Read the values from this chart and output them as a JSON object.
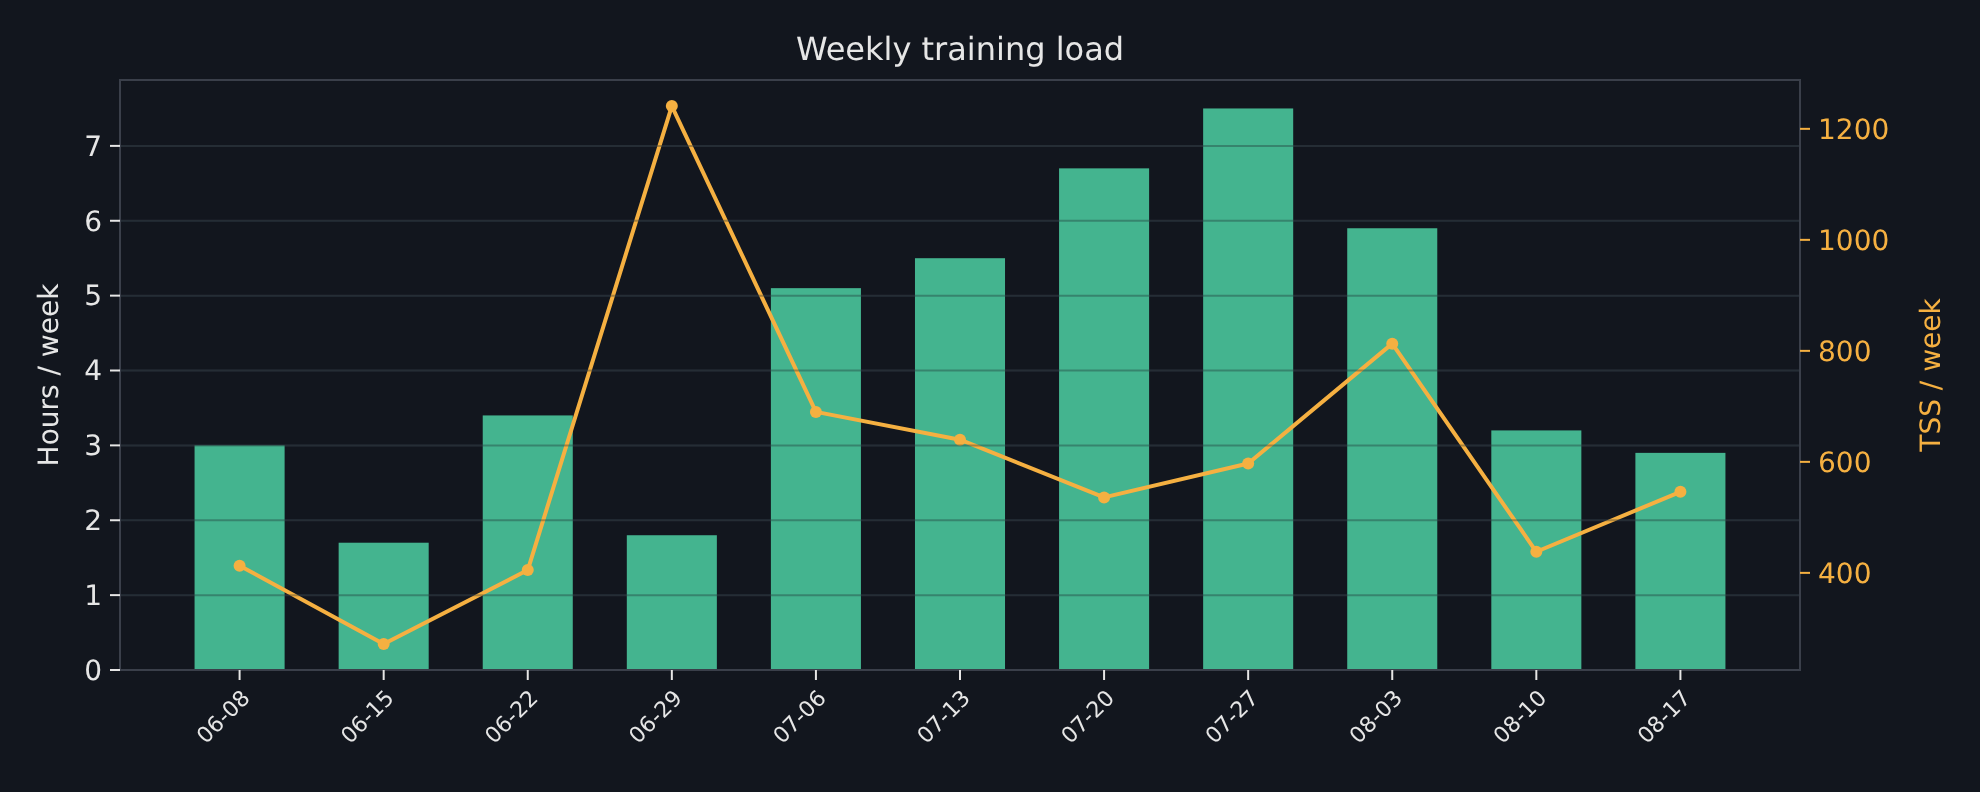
{
  "chart_data": {
    "type": "bar",
    "title": "Weekly training load",
    "ylabel": "Hours / week",
    "y2label": "TSS / week",
    "categories": [
      "06-08",
      "06-15",
      "06-22",
      "06-29",
      "07-06",
      "07-13",
      "07-20",
      "07-27",
      "08-03",
      "08-10",
      "08-17"
    ],
    "series": [
      {
        "color": "#44b48f",
        "values": [
          3.0,
          1.7,
          3.4,
          1.8,
          5.1,
          5.5,
          6.7,
          7.5,
          5.9,
          3.2,
          2.9
        ]
      },
      {
        "type": "line",
        "axis": "y2",
        "color": "#f5b041",
        "marker": "circle",
        "line_style": "solid",
        "values": [
          413,
          272,
          405,
          1241,
          690,
          640,
          536,
          597,
          813,
          438,
          546
        ]
      }
    ],
    "ylim": [
      0,
      7.88
    ],
    "yticks": [
      0,
      1,
      2,
      3,
      4,
      5,
      6,
      7
    ],
    "y2lim": [
      225,
      1288
    ],
    "y2ticks": [
      400,
      600,
      800,
      1000,
      1200
    ],
    "grid": "y"
  }
}
